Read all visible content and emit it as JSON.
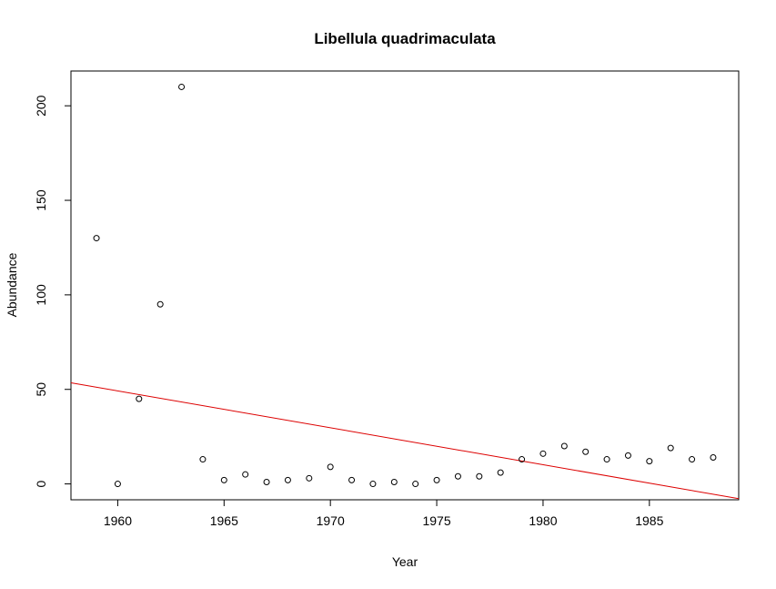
{
  "chart_data": {
    "type": "scatter",
    "title": "Libellula quadrimaculata",
    "xlabel": "Year",
    "ylabel": "Abundance",
    "xlim": [
      1957.8,
      1989.2
    ],
    "ylim": [
      -8.4,
      218.4
    ],
    "xticks": [
      1960,
      1965,
      1970,
      1975,
      1980,
      1985
    ],
    "xtick_labels": [
      "1960",
      "1965",
      "1970",
      "1975",
      "1980",
      "1985"
    ],
    "yticks": [
      0,
      50,
      100,
      150,
      200
    ],
    "ytick_labels": [
      "0",
      "50",
      "100",
      "150",
      "200"
    ],
    "grid": false,
    "legend": "none",
    "point_color": "#000000",
    "trend_color": "#dd0000",
    "series": [
      {
        "x": [
          1959,
          1960,
          1961,
          1962,
          1963,
          1964,
          1965,
          1966,
          1967,
          1968,
          1969,
          1970,
          1971,
          1972,
          1973,
          1974,
          1975,
          1976,
          1977,
          1978,
          1979,
          1980,
          1981,
          1982,
          1983,
          1984,
          1985,
          1986,
          1987,
          1988
        ],
        "y": [
          130,
          0,
          45,
          95,
          210,
          13,
          2,
          5,
          1,
          2,
          3,
          9,
          2,
          0,
          1,
          0,
          2,
          4,
          4,
          6,
          13,
          16,
          20,
          17,
          13,
          15,
          12,
          19,
          13,
          14
        ]
      }
    ],
    "trend_line": {
      "type": "linear",
      "x": [
        1957.8,
        1989.2
      ],
      "y": [
        53.5,
        -7.8
      ]
    }
  }
}
